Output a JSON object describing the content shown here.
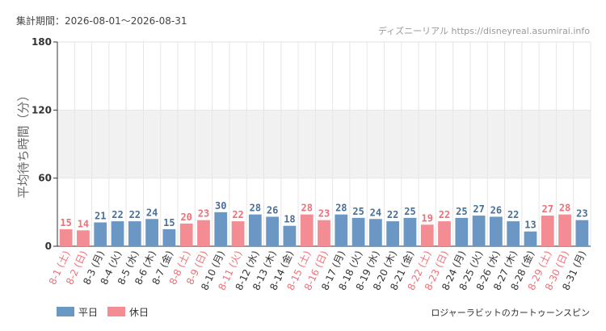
{
  "header": {
    "period_label": "集計期間：2026-08-01～2026-08-31",
    "source": "ディズニーリアル https://disneyreal.asumirai.info"
  },
  "attraction": "ロジャーラビットのカートゥーンスピン",
  "colors": {
    "weekday": "#6a97c4",
    "holiday": "#f48d93",
    "weekday_label": "#4a6f99",
    "holiday_label": "#ef6f77",
    "axis_text": "#333333",
    "band": "#f1f1f1",
    "grid": "#e6e6e6"
  },
  "chart_data": {
    "type": "bar",
    "ylabel": "平均待ち時間（分）",
    "ylim": [
      0,
      180
    ],
    "yticks": [
      0,
      60,
      120,
      180
    ],
    "shaded_bands": [
      [
        60,
        120
      ]
    ],
    "grid": true,
    "legend_position": "bottom-left",
    "legend": [
      {
        "key": "weekday",
        "label": "平日"
      },
      {
        "key": "holiday",
        "label": "休日"
      }
    ],
    "categories": [
      "8-1 (土)",
      "8-2 (日)",
      "8-3 (月)",
      "8-4 (火)",
      "8-5 (水)",
      "8-6 (木)",
      "8-7 (金)",
      "8-8 (土)",
      "8-9 (日)",
      "8-10 (月)",
      "8-11 (火)",
      "8-12 (水)",
      "8-13 (木)",
      "8-14 (金)",
      "8-15 (土)",
      "8-16 (日)",
      "8-17 (月)",
      "8-18 (火)",
      "8-19 (水)",
      "8-20 (木)",
      "8-21 (金)",
      "8-22 (土)",
      "8-23 (日)",
      "8-24 (月)",
      "8-25 (火)",
      "8-26 (水)",
      "8-27 (木)",
      "8-28 (金)",
      "8-29 (土)",
      "8-30 (日)",
      "8-31 (月)"
    ],
    "values": [
      15,
      14,
      21,
      22,
      22,
      24,
      15,
      20,
      23,
      30,
      22,
      28,
      26,
      18,
      28,
      23,
      28,
      25,
      24,
      22,
      25,
      19,
      22,
      25,
      27,
      26,
      22,
      13,
      27,
      28,
      23
    ],
    "day_type": [
      "holiday",
      "holiday",
      "weekday",
      "weekday",
      "weekday",
      "weekday",
      "weekday",
      "holiday",
      "holiday",
      "weekday",
      "holiday",
      "weekday",
      "weekday",
      "weekday",
      "holiday",
      "holiday",
      "weekday",
      "weekday",
      "weekday",
      "weekday",
      "weekday",
      "holiday",
      "holiday",
      "weekday",
      "weekday",
      "weekday",
      "weekday",
      "weekday",
      "holiday",
      "holiday",
      "weekday"
    ]
  }
}
